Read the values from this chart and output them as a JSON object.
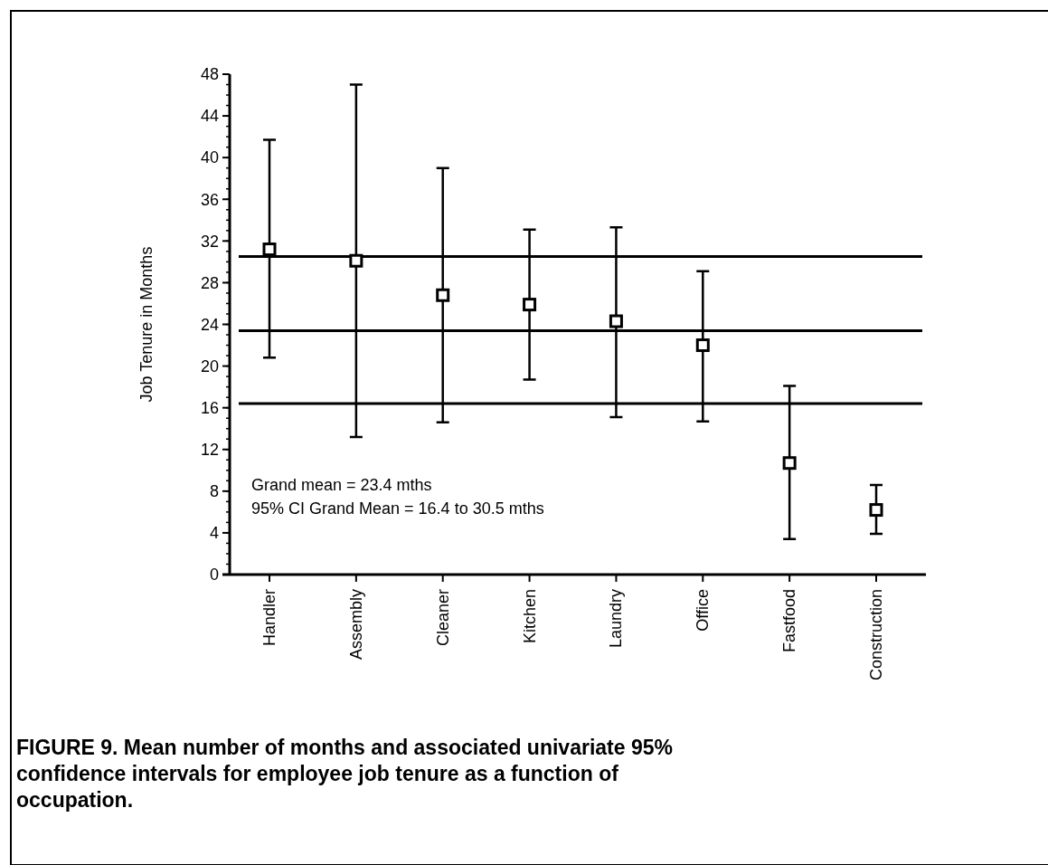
{
  "chart_data": {
    "type": "scatter",
    "title": "FIGURE 9. Mean number of months and associated univariate 95% confidence intervals for employee job tenure as a function of occupation.",
    "ylabel": "Job Tenure in Months",
    "categories": [
      "Handler",
      "Assembly",
      "Cleaner",
      "Kitchen",
      "Laundry",
      "Office",
      "Fastfood",
      "Construction"
    ],
    "series": [
      {
        "color": "#000000",
        "values": [
          31.2,
          30.1,
          26.8,
          25.9,
          24.3,
          22.0,
          10.7,
          6.2
        ],
        "errors": [
          [
            20.8,
            41.7
          ],
          [
            13.2,
            47.0
          ],
          [
            14.6,
            39.0
          ],
          [
            18.7,
            33.1
          ],
          [
            15.1,
            33.3
          ],
          [
            14.7,
            29.1
          ],
          [
            3.4,
            18.1
          ],
          [
            3.9,
            8.6
          ]
        ]
      }
    ],
    "marker": "square",
    "ylim": [
      0,
      48
    ],
    "yticks": [
      0,
      4,
      8,
      12,
      16,
      20,
      24,
      28,
      32,
      36,
      40,
      44,
      48
    ],
    "ref_lines": [
      {
        "axis": "y",
        "value": 30.5,
        "color": "#000000"
      },
      {
        "axis": "y",
        "value": 23.4,
        "color": "#000000"
      },
      {
        "axis": "y",
        "value": 16.4,
        "color": "#000000"
      }
    ],
    "annotations": [
      "Grand mean = 23.4 mths",
      "95% CI Grand Mean = 16.4 to 30.5 mths"
    ],
    "grid": false
  }
}
